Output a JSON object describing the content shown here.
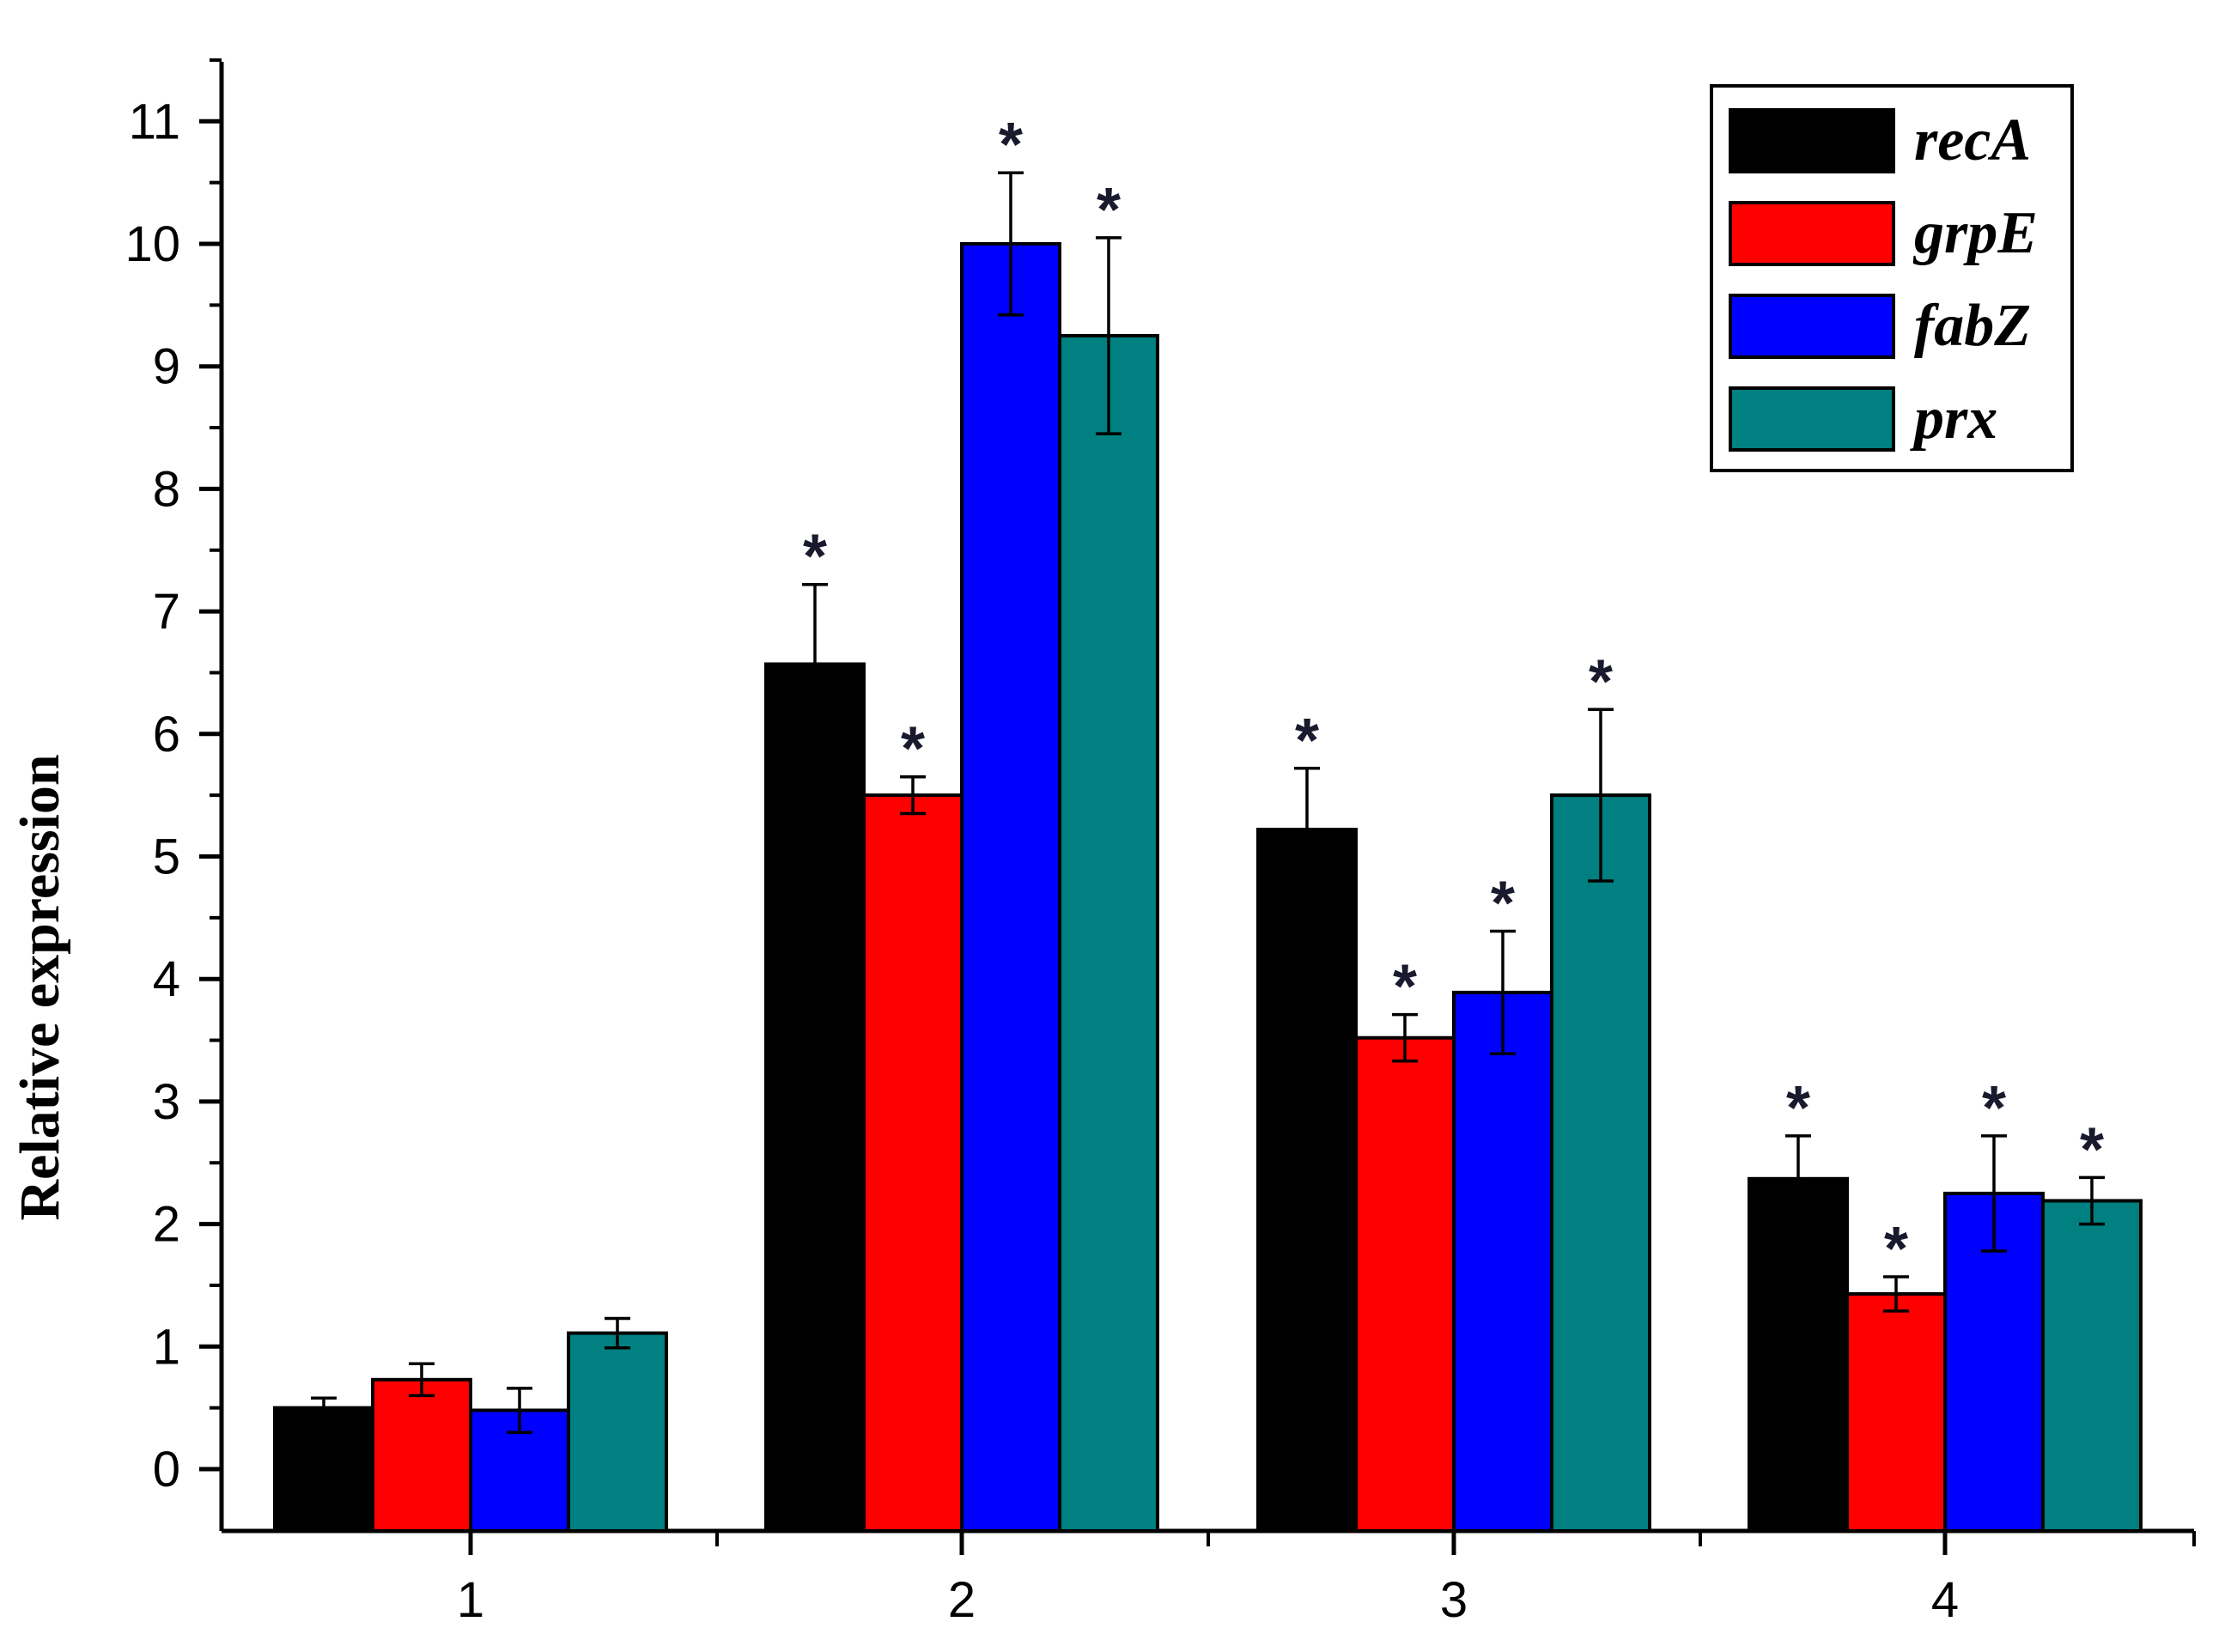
{
  "chart_data": {
    "type": "bar",
    "title": "",
    "xlabel": "",
    "ylabel": "Relative expression",
    "ylim": [
      -0.5,
      11.5
    ],
    "yticks": [
      "0",
      "1",
      "2",
      "3",
      "4",
      "5",
      "6",
      "7",
      "8",
      "9",
      "10",
      "11"
    ],
    "categories": [
      "1",
      "2",
      "3",
      "4"
    ],
    "series": [
      {
        "name": "recA",
        "color": "#000000",
        "values": [
          0.5,
          6.57,
          5.22,
          2.37
        ],
        "errors": [
          0.08,
          0.65,
          0.5,
          0.35
        ],
        "significant": [
          false,
          true,
          true,
          true
        ]
      },
      {
        "name": "grpE",
        "color": "#ff0000",
        "values": [
          0.73,
          5.5,
          3.52,
          1.43
        ],
        "errors": [
          0.13,
          0.15,
          0.19,
          0.14
        ],
        "significant": [
          false,
          true,
          true,
          true
        ]
      },
      {
        "name": "fabZ",
        "color": "#0000ff",
        "values": [
          0.48,
          10.0,
          3.89,
          2.25
        ],
        "errors": [
          0.18,
          0.58,
          0.5,
          0.47
        ],
        "significant": [
          false,
          true,
          true,
          true
        ]
      },
      {
        "name": "prx",
        "color": "#008080",
        "values": [
          1.11,
          9.25,
          5.5,
          2.19
        ],
        "errors": [
          0.12,
          0.8,
          0.7,
          0.19
        ],
        "significant": [
          false,
          true,
          true,
          true
        ]
      }
    ],
    "significance_marker": "*",
    "legend_position": "top-right"
  }
}
